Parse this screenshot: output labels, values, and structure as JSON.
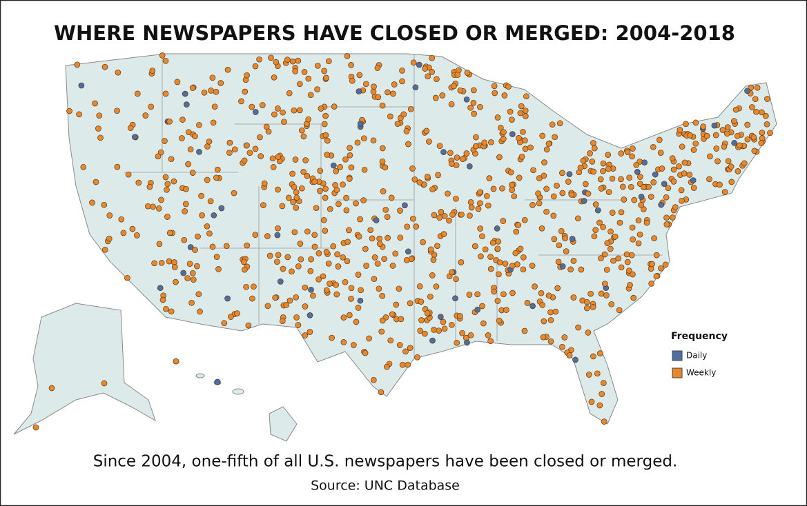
{
  "header": {
    "title": "WHERE NEWSPAPERS HAVE CLOSED OR MERGED: 2004-2018"
  },
  "legend": {
    "title": "Frequency",
    "items": [
      {
        "label": "Daily",
        "color": "#4f6fa3"
      },
      {
        "label": "Weekly",
        "color": "#e8882c"
      }
    ]
  },
  "footer": {
    "caption": "Since 2004, one-fifth of all U.S. newspapers have been closed or merged.",
    "source": "Source: UNC Database"
  }
}
